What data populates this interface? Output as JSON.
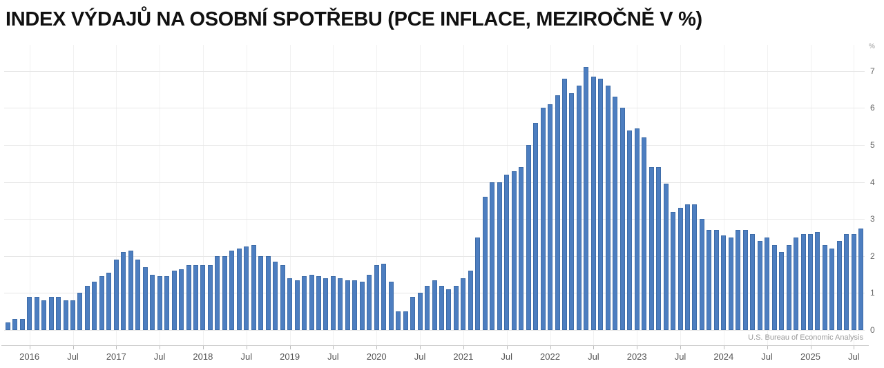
{
  "page": {
    "title": "INDEX VÝDAJŮ NA OSOBNÍ SPOTŘEBU (PCE INFLACE, MEZIROČNĚ V %)",
    "source": "U.S. Bureau of Economic Analysis"
  },
  "chart_data": {
    "type": "bar",
    "title": "INDEX VÝDAJŮ NA OSOBNÍ SPOTŘEBU (PCE INFLACE, MEZIROČNĚ V %)",
    "ylabel": "%",
    "source": "U.S. Bureau of Economic Analysis",
    "frequency": "monthly",
    "start_month": "2015-10",
    "end_month": "2025-08",
    "ylim": [
      0,
      7.5
    ],
    "y_ticks": [
      0,
      1,
      2,
      3,
      4,
      5,
      6,
      7
    ],
    "grid": true,
    "legend_position": "none",
    "bar_color": "#4d7ec0",
    "x_ticks": [
      {
        "index": 3,
        "label": "2016"
      },
      {
        "index": 9,
        "label": "Jul"
      },
      {
        "index": 15,
        "label": "2017"
      },
      {
        "index": 21,
        "label": "Jul"
      },
      {
        "index": 27,
        "label": "2018"
      },
      {
        "index": 33,
        "label": "Jul"
      },
      {
        "index": 39,
        "label": "2019"
      },
      {
        "index": 45,
        "label": "Jul"
      },
      {
        "index": 51,
        "label": "2020"
      },
      {
        "index": 57,
        "label": "Jul"
      },
      {
        "index": 63,
        "label": "2021"
      },
      {
        "index": 69,
        "label": "Jul"
      },
      {
        "index": 75,
        "label": "2022"
      },
      {
        "index": 81,
        "label": "Jul"
      },
      {
        "index": 87,
        "label": "2023"
      },
      {
        "index": 93,
        "label": "Jul"
      },
      {
        "index": 99,
        "label": "2024"
      },
      {
        "index": 105,
        "label": "Jul"
      },
      {
        "index": 111,
        "label": "2025"
      },
      {
        "index": 117,
        "label": "Jul"
      }
    ],
    "values": [
      0.2,
      0.3,
      0.3,
      0.9,
      0.9,
      0.8,
      0.9,
      0.9,
      0.8,
      0.8,
      1.0,
      1.2,
      1.3,
      1.45,
      1.55,
      1.9,
      2.1,
      2.15,
      1.9,
      1.7,
      1.5,
      1.45,
      1.45,
      1.6,
      1.65,
      1.75,
      1.75,
      1.75,
      1.75,
      2.0,
      2.0,
      2.15,
      2.2,
      2.25,
      2.3,
      2.0,
      2.0,
      1.85,
      1.75,
      1.4,
      1.35,
      1.45,
      1.5,
      1.45,
      1.4,
      1.45,
      1.4,
      1.35,
      1.35,
      1.3,
      1.5,
      1.75,
      1.8,
      1.3,
      0.5,
      0.5,
      0.9,
      1.0,
      1.2,
      1.35,
      1.2,
      1.1,
      1.2,
      1.4,
      1.6,
      2.5,
      3.6,
      4.0,
      4.0,
      4.2,
      4.3,
      4.4,
      5.0,
      5.6,
      6.0,
      6.1,
      6.35,
      6.8,
      6.4,
      6.6,
      7.1,
      6.85,
      6.8,
      6.6,
      6.3,
      6.0,
      5.4,
      5.45,
      5.2,
      4.4,
      4.4,
      3.95,
      3.2,
      3.3,
      3.4,
      3.4,
      3.0,
      2.7,
      2.7,
      2.55,
      2.5,
      2.7,
      2.7,
      2.6,
      2.4,
      2.5,
      2.3,
      2.1,
      2.3,
      2.5,
      2.6,
      2.6,
      2.65,
      2.3,
      2.2,
      2.4,
      2.6,
      2.6,
      2.75
    ]
  }
}
